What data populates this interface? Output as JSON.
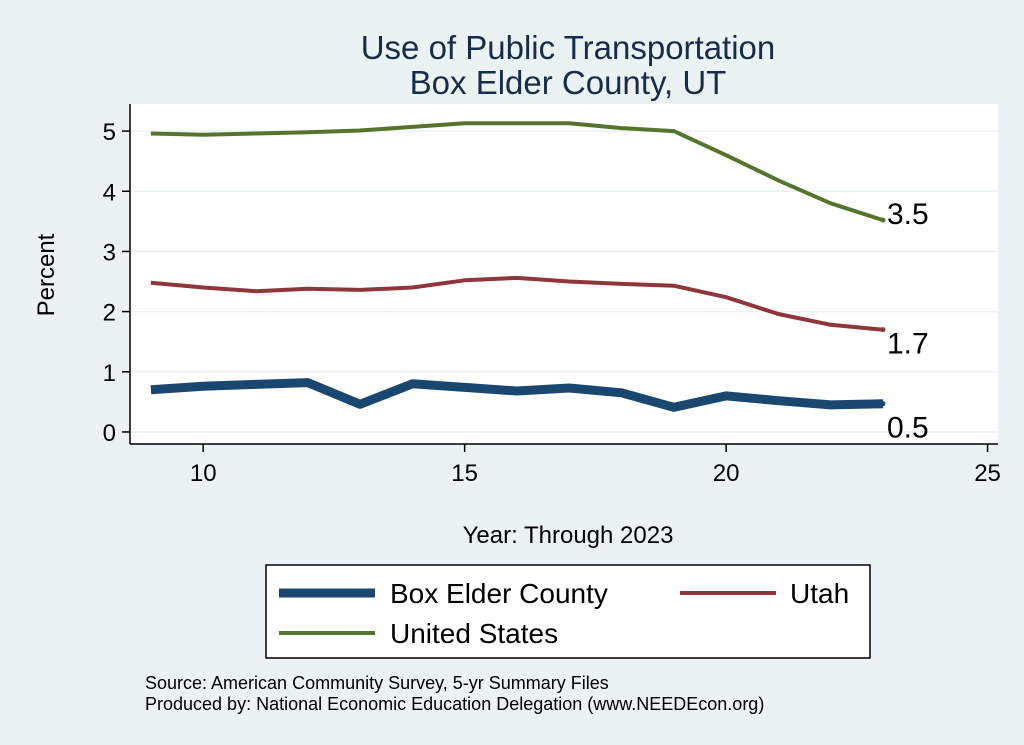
{
  "chart_data": {
    "type": "line",
    "title": [
      "Use of Public Transportation",
      "Box Elder County, UT"
    ],
    "xlabel": "Year: Through 2023",
    "ylabel": "Percent",
    "xlim": [
      8.6,
      25.2
    ],
    "ylim": [
      -0.2,
      5.45
    ],
    "xticks": [
      10,
      15,
      20,
      25
    ],
    "yticks": [
      0,
      1,
      2,
      3,
      4,
      5
    ],
    "grid": true,
    "legend_position": "bottom",
    "x": [
      9,
      10,
      11,
      12,
      13,
      14,
      15,
      16,
      17,
      18,
      19,
      20,
      21,
      22,
      23
    ],
    "series": [
      {
        "name": "Box Elder County",
        "color": "#1a476f",
        "values": [
          0.7,
          0.76,
          0.79,
          0.82,
          0.46,
          0.8,
          0.74,
          0.68,
          0.73,
          0.65,
          0.41,
          0.6,
          0.52,
          0.45,
          0.47
        ],
        "end_label": "0.5"
      },
      {
        "name": "Utah",
        "color": "#90353b",
        "values": [
          2.48,
          2.4,
          2.34,
          2.38,
          2.36,
          2.4,
          2.52,
          2.56,
          2.5,
          2.46,
          2.43,
          2.24,
          1.96,
          1.78,
          1.7
        ],
        "end_label": "1.7"
      },
      {
        "name": "United States",
        "color": "#55752f",
        "values": [
          4.96,
          4.94,
          4.96,
          4.98,
          5.01,
          5.07,
          5.13,
          5.13,
          5.13,
          5.05,
          5.0,
          4.6,
          4.18,
          3.8,
          3.52
        ],
        "end_label": "3.5"
      }
    ]
  },
  "notes": [
    "Source: American Community Survey, 5-yr Summary Files",
    "Produced by: National Economic Education Delegation (www.NEEDEcon.org)"
  ]
}
